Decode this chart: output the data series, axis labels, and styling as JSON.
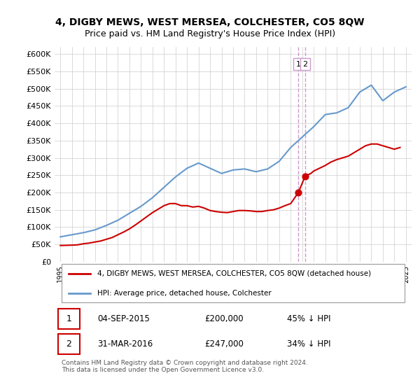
{
  "title": "4, DIGBY MEWS, WEST MERSEA, COLCHESTER, CO5 8QW",
  "subtitle": "Price paid vs. HM Land Registry's House Price Index (HPI)",
  "title_fontsize": 11,
  "subtitle_fontsize": 9.5,
  "ylabel_ticks": [
    "£0",
    "£50K",
    "£100K",
    "£150K",
    "£200K",
    "£250K",
    "£300K",
    "£350K",
    "£400K",
    "£450K",
    "£500K",
    "£550K",
    "£600K"
  ],
  "ytick_values": [
    0,
    50000,
    100000,
    150000,
    200000,
    250000,
    300000,
    350000,
    400000,
    450000,
    500000,
    550000,
    600000
  ],
  "hpi_color": "#6699cc",
  "price_color": "#cc0000",
  "dot_color": "#cc0000",
  "annotation_color": "#cc0000",
  "vline_color": "#cc99cc",
  "background_color": "#ffffff",
  "grid_color": "#cccccc",
  "legend_label_price": "4, DIGBY MEWS, WEST MERSEA, COLCHESTER, CO5 8QW (detached house)",
  "legend_label_hpi": "HPI: Average price, detached house, Colchester",
  "purchase1_date": "04-SEP-2015",
  "purchase1_price": 200000,
  "purchase1_pct": "45% ↓ HPI",
  "purchase2_date": "31-MAR-2016",
  "purchase2_price": 247000,
  "purchase2_pct": "34% ↓ HPI",
  "footnote": "Contains HM Land Registry data © Crown copyright and database right 2024.\nThis data is licensed under the Open Government Licence v3.0.",
  "hpi_years": [
    1995,
    1996,
    1997,
    1998,
    1999,
    2000,
    2001,
    2002,
    2003,
    2004,
    2005,
    2006,
    2007,
    2008,
    2009,
    2010,
    2011,
    2012,
    2013,
    2014,
    2015,
    2016,
    2017,
    2018,
    2019,
    2020,
    2021,
    2022,
    2023,
    2024,
    2025
  ],
  "hpi_values": [
    72000,
    78000,
    84000,
    92000,
    105000,
    120000,
    140000,
    160000,
    185000,
    215000,
    245000,
    270000,
    285000,
    270000,
    255000,
    265000,
    268000,
    260000,
    268000,
    290000,
    330000,
    360000,
    390000,
    425000,
    430000,
    445000,
    490000,
    510000,
    465000,
    490000,
    505000
  ],
  "price_years": [
    1995.0,
    1995.5,
    1996,
    1996.5,
    1997,
    1997.5,
    1998,
    1998.5,
    1999,
    1999.5,
    2000,
    2000.5,
    2001,
    2001.5,
    2002,
    2002.5,
    2003,
    2003.5,
    2004,
    2004.5,
    2005,
    2005.5,
    2006,
    2006.5,
    2007,
    2007.5,
    2008,
    2008.5,
    2009,
    2009.5,
    2010,
    2010.5,
    2011,
    2011.5,
    2012,
    2012.5,
    2013,
    2013.5,
    2014,
    2014.5,
    2015,
    2015.67,
    2016.25,
    2016.75,
    2017,
    2017.5,
    2018,
    2018.5,
    2019,
    2019.5,
    2020,
    2020.5,
    2021,
    2021.5,
    2022,
    2022.5,
    2023,
    2023.5,
    2024,
    2024.5
  ],
  "price_values": [
    47000,
    47500,
    48000,
    49000,
    52000,
    54000,
    57000,
    60000,
    65000,
    70000,
    78000,
    86000,
    95000,
    106000,
    118000,
    130000,
    142000,
    152000,
    162000,
    168000,
    168000,
    162000,
    162000,
    158000,
    160000,
    155000,
    148000,
    145000,
    143000,
    142000,
    145000,
    148000,
    148000,
    147000,
    145000,
    145000,
    148000,
    150000,
    155000,
    162000,
    168000,
    200000,
    247000,
    255000,
    262000,
    270000,
    278000,
    288000,
    295000,
    300000,
    305000,
    315000,
    325000,
    335000,
    340000,
    340000,
    335000,
    330000,
    325000,
    330000
  ],
  "purchase1_x": 2015.67,
  "purchase2_x": 2016.25,
  "vline_x1": 2015.67,
  "vline_x2": 2016.25,
  "xmin": 1994.5,
  "xmax": 2025.5,
  "ymin": 0,
  "ymax": 620000,
  "xtick_years": [
    1995,
    1996,
    1997,
    1998,
    1999,
    2000,
    2001,
    2002,
    2003,
    2004,
    2005,
    2006,
    2007,
    2008,
    2009,
    2010,
    2011,
    2012,
    2013,
    2014,
    2015,
    2016,
    2017,
    2018,
    2019,
    2020,
    2021,
    2022,
    2023,
    2024,
    2025
  ]
}
